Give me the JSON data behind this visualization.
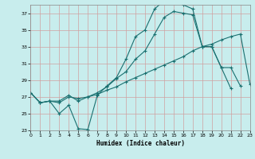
{
  "background_color": "#c8eded",
  "grid_color": "#b0d8d8",
  "line_color": "#1a7070",
  "xlabel": "Humidex (Indice chaleur)",
  "xlim": [
    0,
    23
  ],
  "ylim": [
    23,
    38
  ],
  "xticks": [
    0,
    1,
    2,
    3,
    4,
    5,
    6,
    7,
    8,
    9,
    10,
    11,
    12,
    13,
    14,
    15,
    16,
    17,
    18,
    19,
    20,
    21,
    22,
    23
  ],
  "yticks": [
    23,
    25,
    27,
    29,
    31,
    33,
    35,
    37
  ],
  "line1_x": [
    0,
    1,
    2,
    3,
    4,
    5,
    6,
    7,
    8,
    9,
    10,
    11,
    12,
    13,
    14,
    15,
    16,
    17,
    18,
    19,
    20,
    21
  ],
  "line1_y": [
    27.5,
    26.3,
    26.5,
    25.0,
    26.0,
    23.2,
    23.1,
    27.2,
    28.3,
    29.3,
    31.5,
    34.2,
    35.0,
    37.5,
    38.5,
    38.7,
    38.0,
    37.5,
    33.0,
    33.0,
    30.5,
    28.0
  ],
  "line2_x": [
    0,
    1,
    2,
    3,
    4,
    5,
    6,
    7,
    8,
    9,
    10,
    11,
    12,
    13,
    14,
    15,
    16,
    17,
    18,
    19,
    20,
    21,
    22
  ],
  "line2_y": [
    27.5,
    26.3,
    26.5,
    26.5,
    27.2,
    26.5,
    27.0,
    27.5,
    28.2,
    29.2,
    30.0,
    31.5,
    32.5,
    34.5,
    36.5,
    37.2,
    37.0,
    36.8,
    33.0,
    33.0,
    30.5,
    30.5,
    28.3
  ],
  "line3_x": [
    0,
    1,
    2,
    3,
    4,
    5,
    6,
    7,
    8,
    9,
    10,
    11,
    12,
    13,
    14,
    15,
    16,
    17,
    18,
    19,
    20,
    21,
    22,
    23
  ],
  "line3_y": [
    27.5,
    26.3,
    26.5,
    26.3,
    27.0,
    26.8,
    27.0,
    27.3,
    27.8,
    28.2,
    28.8,
    29.3,
    29.8,
    30.3,
    30.8,
    31.3,
    31.8,
    32.5,
    33.0,
    33.3,
    33.8,
    34.2,
    34.5,
    28.5
  ]
}
